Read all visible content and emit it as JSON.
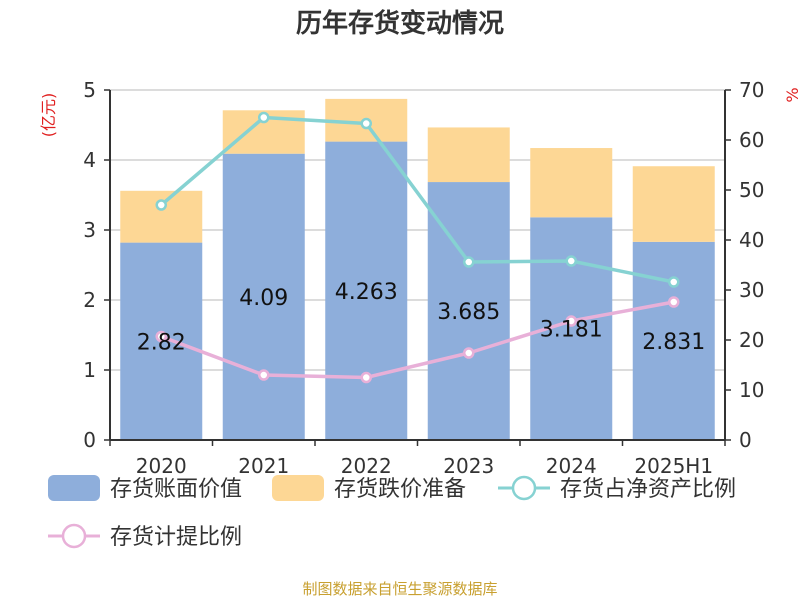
{
  "chart_data": {
    "type": "bar",
    "title": "历年存货变动情况",
    "categories": [
      "2020",
      "2021",
      "2022",
      "2023",
      "2024",
      "2025H1"
    ],
    "left_axis": {
      "unit_label": "(亿元)",
      "ylim": [
        0,
        5
      ],
      "ticks": [
        0,
        1,
        2,
        3,
        4,
        5
      ]
    },
    "right_axis": {
      "unit_label": "%",
      "ylim": [
        0,
        70
      ],
      "ticks": [
        0,
        10,
        20,
        30,
        40,
        50,
        60,
        70
      ]
    },
    "series": [
      {
        "name": "存货账面价值",
        "kind": "bar",
        "axis": "left",
        "color": "#8eaedb",
        "values": [
          2.82,
          4.09,
          4.263,
          3.685,
          3.181,
          2.831
        ],
        "labels": [
          "2.82",
          "4.09",
          "4.263",
          "3.685",
          "3.181",
          "2.831"
        ]
      },
      {
        "name": "存货跌价准备",
        "kind": "bar",
        "axis": "left",
        "color": "#fdd795",
        "values": [
          0.74,
          0.62,
          0.61,
          0.78,
          0.99,
          1.08
        ]
      },
      {
        "name": "存货占净资产比例",
        "kind": "line",
        "axis": "right",
        "color": "#86d2d2",
        "values": [
          47,
          64.5,
          63.3,
          35.6,
          35.8,
          31.6
        ]
      },
      {
        "name": "存货计提比例",
        "kind": "line",
        "axis": "right",
        "color": "#e8b0d8",
        "values": [
          20.7,
          13.0,
          12.5,
          17.4,
          23.8,
          27.6
        ]
      }
    ],
    "source": "制图数据来自恒生聚源数据库",
    "grid": true,
    "legend_position": "bottom"
  }
}
